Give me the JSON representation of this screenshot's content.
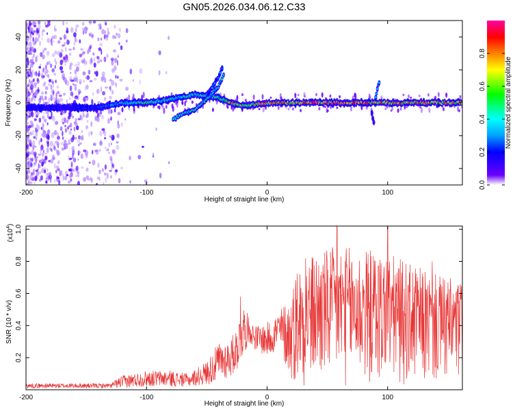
{
  "figure": {
    "title": "GN05.2026.034.06.12.C33"
  },
  "chart_data": [
    {
      "type": "heatmap",
      "xlabel": "Height of straight line (km)",
      "ylabel": "Frequency (Hz)",
      "xlim": [
        -200,
        162
      ],
      "ylim": [
        -50,
        50
      ],
      "xticks": [
        -200,
        -100,
        0,
        100
      ],
      "yticks": [
        -40,
        -20,
        0,
        20,
        40
      ],
      "x_tick_labels": [
        "-200",
        "-100",
        "0",
        "100"
      ],
      "y_tick_labels": [
        "-40",
        "-20",
        "0",
        "20",
        "40"
      ],
      "colorbar": {
        "label": "Normalized spectral amplitude",
        "range": [
          0,
          1
        ],
        "ticks": [
          0.0,
          0.2,
          0.4,
          0.6,
          0.8
        ],
        "tick_labels": [
          "0.0",
          "0.2",
          "0.4",
          "0.6",
          "0.8"
        ],
        "colors": [
          "#ffffff",
          "#6a00ff",
          "#0000ff",
          "#00a0ff",
          "#00ffff",
          "#00ff00",
          "#ffff00",
          "#ff8000",
          "#ff0000",
          "#ff00a0"
        ]
      },
      "features": [
        {
          "name": "main-line",
          "x": [
            -200,
            -140,
            -120,
            -100,
            -80,
            -60,
            -40,
            -30,
            -20,
            0,
            50,
            100,
            162
          ],
          "y": [
            -3,
            -3,
            0,
            0,
            2,
            5,
            3,
            0,
            -2,
            0,
            0,
            0,
            0
          ],
          "peak": [
            0.2,
            0.25,
            0.4,
            0.55,
            0.5,
            0.45,
            0.6,
            0.9,
            0.7,
            0.85,
            0.95,
            0.9,
            0.8
          ]
        },
        {
          "name": "rising-branch",
          "x": [
            -78,
            -70,
            -60,
            -50,
            -40,
            -36
          ],
          "y": [
            -10,
            -7,
            -4,
            2,
            10,
            17
          ],
          "peak": 0.5
        },
        {
          "name": "upper-branch",
          "x": [
            -50,
            -45,
            -40,
            -37
          ],
          "y": [
            5,
            10,
            16,
            22
          ],
          "peak": 0.3
        },
        {
          "name": "spike-92",
          "x": [
            90,
            91,
            92,
            93
          ],
          "y": [
            3,
            6,
            10,
            12
          ],
          "peak": 0.35
        },
        {
          "name": "spike-88-low",
          "x": [
            87,
            88,
            89
          ],
          "y": [
            -6,
            -10,
            -14
          ],
          "peak": 0.2
        }
      ]
    },
    {
      "type": "line",
      "xlabel": "Height of straight line (km)",
      "ylabel": "SNR (10 * v/v)",
      "y_multiplier": "(x10",
      "y_multiplier_exp": "4",
      "y_multiplier_close": ")",
      "xlim": [
        -200,
        162
      ],
      "ylim": [
        0,
        1.02
      ],
      "xticks": [
        -200,
        -100,
        0,
        100
      ],
      "yticks": [
        0.2,
        0.4,
        0.6,
        0.8,
        1.0
      ],
      "x_tick_labels": [
        "-200",
        "-100",
        "0",
        "100"
      ],
      "y_tick_labels": [
        "0.2",
        "0.4",
        "0.6",
        "0.8",
        "1.0"
      ],
      "color": "#e83333",
      "envelope": {
        "x": [
          -200,
          -130,
          -120,
          -100,
          -80,
          -65,
          -50,
          -40,
          -30,
          -25,
          -20,
          -15,
          -10,
          0,
          10,
          20,
          25,
          40,
          60,
          80,
          100,
          120,
          140,
          162
        ],
        "low": [
          0.01,
          0.01,
          0.01,
          0.02,
          0.02,
          0.02,
          0.03,
          0.05,
          0.08,
          0.12,
          0.2,
          0.3,
          0.25,
          0.2,
          0.25,
          0.05,
          0.02,
          0.02,
          0.02,
          0.02,
          0.02,
          0.02,
          0.02,
          0.02
        ],
        "high": [
          0.04,
          0.04,
          0.09,
          0.12,
          0.12,
          0.1,
          0.18,
          0.3,
          0.32,
          0.4,
          0.55,
          0.45,
          0.4,
          0.42,
          0.5,
          0.6,
          0.78,
          0.86,
          0.9,
          0.88,
          0.86,
          0.78,
          0.72,
          0.68
        ],
        "peaks": [
          {
            "x": 58,
            "y": 1.02
          },
          {
            "x": 100,
            "y": 1.02
          },
          {
            "x": -22,
            "y": 0.58
          },
          {
            "x": 32,
            "y": 0.82
          },
          {
            "x": 137,
            "y": 0.8
          }
        ]
      }
    }
  ]
}
